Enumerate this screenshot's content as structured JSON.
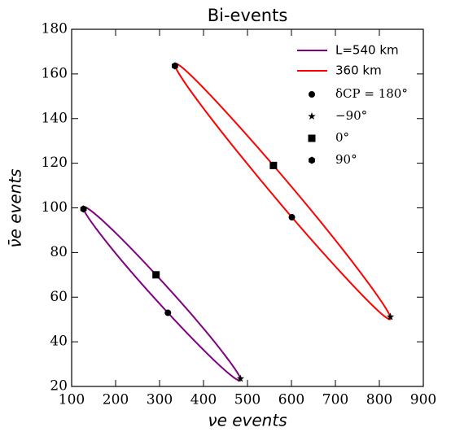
{
  "chart_data": {
    "type": "line",
    "title": "Bi-events",
    "x_label": "νe events",
    "y_label": "ν̄e events",
    "xlim": [
      100,
      900
    ],
    "xticks": [
      100,
      200,
      300,
      400,
      500,
      600,
      700,
      800,
      900
    ],
    "ylim": [
      20,
      180
    ],
    "yticks": [
      20,
      40,
      60,
      80,
      100,
      120,
      140,
      160,
      180
    ],
    "legend": "upper right",
    "series": [
      {
        "name": "L=540 km",
        "color": "#800080",
        "x": [
          292,
          204.6,
          144.2,
          127,
          157.7,
          227.9,
          319,
          406.4,
          466.8,
          484,
          453.3,
          383.1
        ],
        "values": [
          70,
          87.9,
          98.7,
          99.5,
          90.2,
          73.1,
          53,
          35.1,
          24.3,
          23.5,
          32.8,
          49.9
        ]
      },
      {
        "name": "360 km",
        "color": "#ff0000",
        "x": [
          559,
          439.3,
          357.3,
          335,
          378.3,
          475.7,
          601,
          720.7,
          802.7,
          825,
          781.7,
          684.3
        ],
        "values": [
          119,
          145.5,
          161.9,
          163.6,
          150.3,
          125.5,
          95.8,
          69.3,
          52.9,
          51.2,
          64.5,
          89.4
        ]
      }
    ],
    "markers": [
      {
        "name": "δCP = 180°",
        "marker": "circle",
        "color": "#000000",
        "x": [
          319,
          601
        ],
        "values": [
          53,
          95.8
        ]
      },
      {
        "name": "−90°",
        "marker": "star",
        "color": "#000000",
        "x": [
          484,
          825
        ],
        "values": [
          23.5,
          51.2
        ]
      },
      {
        "name": "0°",
        "marker": "square",
        "color": "#000000",
        "x": [
          292,
          559
        ],
        "values": [
          70,
          119
        ]
      },
      {
        "name": "90°",
        "marker": "hexagon",
        "color": "#000000",
        "x": [
          127,
          335
        ],
        "values": [
          99.5,
          163.6
        ]
      }
    ]
  }
}
